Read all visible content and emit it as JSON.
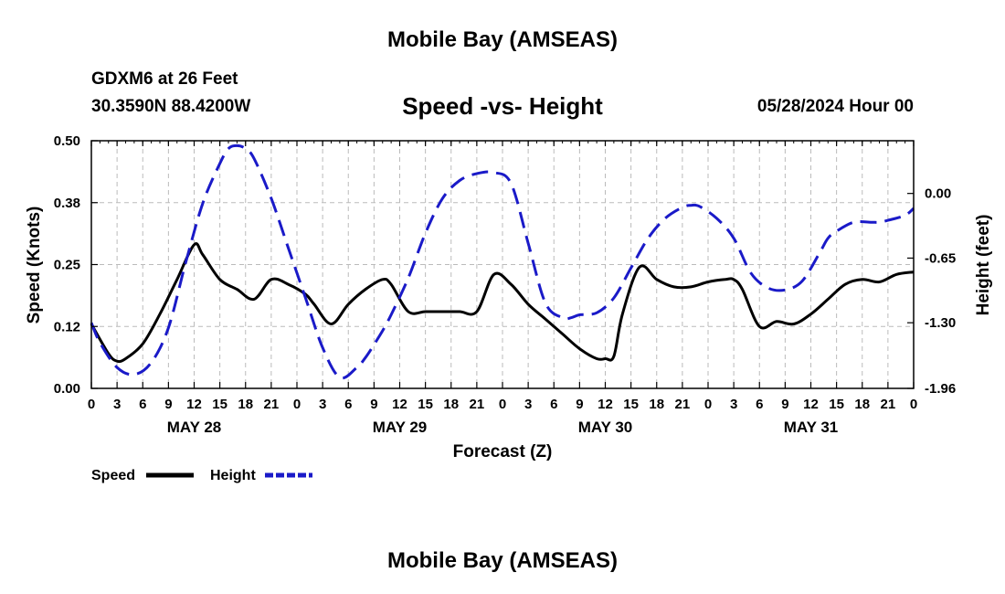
{
  "page": {
    "title": "Mobile Bay (AMSEAS)",
    "footer_title": "Mobile Bay (AMSEAS)"
  },
  "header": {
    "station": "GDXM6 at 26 Feet",
    "coords": "30.3590N  88.4200W",
    "chart_title": "Speed -vs- Height",
    "datetime": "05/28/2024 Hour 00"
  },
  "colors": {
    "speed": "#000000",
    "height": "#1a1ac8",
    "grid": "#bbbbbb"
  },
  "chart_data": {
    "type": "line",
    "title": "Speed -vs- Height",
    "xlabel": "Forecast (Z)",
    "ylabel": "Speed (Knots)",
    "y2label": "Height (feet)",
    "x_range_hours": [
      0,
      96
    ],
    "x_tick_step_hours": 3,
    "x_tick_labels": [
      "0",
      "3",
      "6",
      "9",
      "12",
      "15",
      "18",
      "21",
      "0",
      "3",
      "6",
      "9",
      "12",
      "15",
      "18",
      "21",
      "0",
      "3",
      "6",
      "9",
      "12",
      "15",
      "18",
      "21",
      "0",
      "3",
      "6",
      "9",
      "12",
      "15",
      "18",
      "21",
      "0"
    ],
    "date_labels": [
      {
        "label": "MAY 28",
        "hour": 12
      },
      {
        "label": "MAY 29",
        "hour": 36
      },
      {
        "label": "MAY 30",
        "hour": 60
      },
      {
        "label": "MAY 31",
        "hour": 84
      }
    ],
    "ylim": [
      0,
      0.5
    ],
    "y_ticks": [
      "0.00",
      "0.12",
      "0.25",
      "0.38",
      "0.50"
    ],
    "y2lim": [
      -1.96,
      0.53
    ],
    "y2_ticks": [
      "0.00",
      "-0.65",
      "-1.30",
      "-1.96"
    ],
    "grid": true,
    "legend": "bottom-left",
    "series": [
      {
        "name": "Speed",
        "axis": "left",
        "style": "solid",
        "x": [
          0,
          2,
          3,
          4,
          6,
          8,
          10,
          12,
          13,
          15,
          17,
          19,
          21,
          23,
          25,
          26,
          28,
          30,
          32,
          34,
          35,
          37,
          39,
          41,
          43,
          45,
          47,
          49,
          51,
          53,
          55,
          57,
          59,
          60,
          61,
          62,
          64,
          66,
          68,
          70,
          72,
          74,
          75,
          76,
          78,
          80,
          82,
          84,
          86,
          88,
          90,
          92,
          94,
          96
        ],
        "values": [
          0.13,
          0.07,
          0.055,
          0.06,
          0.09,
          0.15,
          0.22,
          0.29,
          0.27,
          0.22,
          0.2,
          0.18,
          0.22,
          0.21,
          0.19,
          0.17,
          0.13,
          0.17,
          0.2,
          0.22,
          0.21,
          0.155,
          0.155,
          0.155,
          0.155,
          0.155,
          0.23,
          0.21,
          0.17,
          0.14,
          0.11,
          0.08,
          0.06,
          0.06,
          0.065,
          0.15,
          0.245,
          0.22,
          0.205,
          0.205,
          0.215,
          0.22,
          0.22,
          0.2,
          0.125,
          0.135,
          0.13,
          0.15,
          0.18,
          0.21,
          0.22,
          0.215,
          0.23,
          0.235
        ]
      },
      {
        "name": "Height",
        "axis": "right",
        "style": "dashed",
        "x": [
          0,
          1,
          3,
          5,
          7,
          9,
          11,
          13,
          15,
          16,
          17,
          18,
          19,
          21,
          23,
          25,
          27,
          29,
          31,
          32,
          33,
          34,
          35,
          37,
          39,
          41,
          43,
          45,
          47,
          49,
          51,
          53,
          55,
          56,
          57,
          59,
          61,
          63,
          65,
          67,
          69,
          70,
          71,
          73,
          75,
          77,
          79,
          81,
          83,
          85,
          86,
          87,
          89,
          91,
          92,
          93,
          95,
          96
        ],
        "values": [
          -1.3,
          -1.5,
          -1.75,
          -1.82,
          -1.7,
          -1.35,
          -0.7,
          -0.1,
          0.3,
          0.45,
          0.48,
          0.45,
          0.35,
          -0.05,
          -0.55,
          -1.05,
          -1.55,
          -1.85,
          -1.75,
          -1.65,
          -1.52,
          -1.38,
          -1.22,
          -0.85,
          -0.4,
          -0.05,
          0.13,
          0.2,
          0.21,
          0.1,
          -0.5,
          -1.1,
          -1.25,
          -1.25,
          -1.22,
          -1.2,
          -1.05,
          -0.75,
          -0.45,
          -0.25,
          -0.14,
          -0.12,
          -0.13,
          -0.25,
          -0.45,
          -0.8,
          -0.95,
          -0.97,
          -0.88,
          -0.6,
          -0.45,
          -0.38,
          -0.29,
          -0.29,
          -0.29,
          -0.27,
          -0.22,
          -0.15
        ]
      }
    ]
  }
}
